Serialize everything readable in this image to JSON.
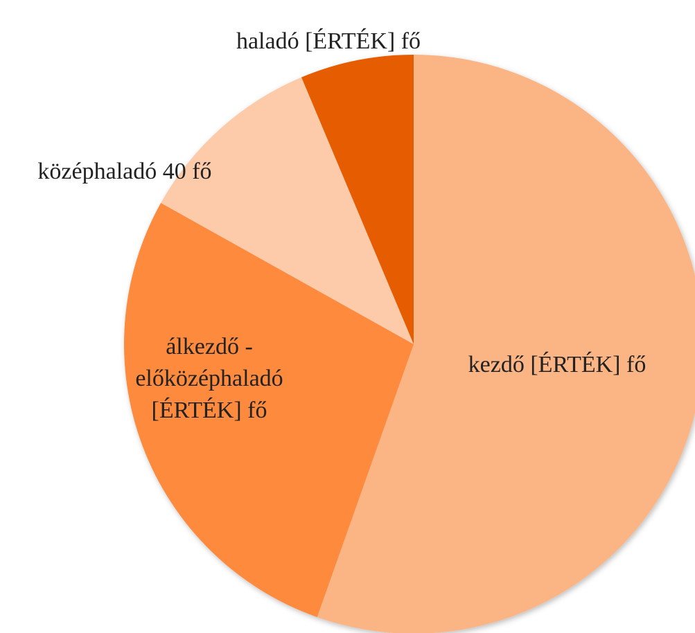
{
  "chart_data": {
    "type": "pie",
    "values": [
      210,
      105,
      40,
      24
    ],
    "value_labels": [
      "kezdő [ÉRTÉK] fő",
      "álkezdő - előközéphaladó [ÉRTÉK] fő",
      "középhaladó 40 fő",
      "haladó [ÉRTÉK] fő"
    ],
    "colors": [
      "#fbb584",
      "#fd8a3c",
      "#fecbaa",
      "#e65c00"
    ]
  }
}
